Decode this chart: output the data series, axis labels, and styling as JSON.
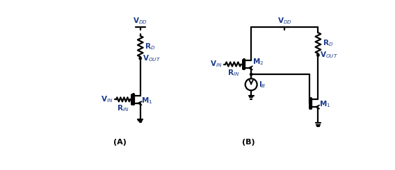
{
  "figsize": [
    5.68,
    2.45
  ],
  "dpi": 100,
  "background": "#ffffff",
  "lw": 1.6,
  "text_VDD_A": "V$_{DD}$",
  "text_VDD_B": "V$_{DD}$",
  "text_RD_A": "R$_D$",
  "text_RD_B": "R$_D$",
  "text_VOUT_A": "V$_{OUT}$",
  "text_VOUT_B": "V$_{OUT}$",
  "text_VIN_A": "V$_{IN}$",
  "text_VIN_B": "V$_{IN}$",
  "text_RIN_A": "R$_{IN}$",
  "text_RIN_B": "R$_{IN}$",
  "text_M1_A": "M$_1$",
  "text_M1_B": "M$_1$",
  "text_M2_B": "M$_2$",
  "text_IB": "I$_B$",
  "label_A": "(A)",
  "label_B": "(B)",
  "label_color": "#000000",
  "text_color": "#1a3a8a",
  "font_size_label": 8,
  "font_size_node": 7.5
}
